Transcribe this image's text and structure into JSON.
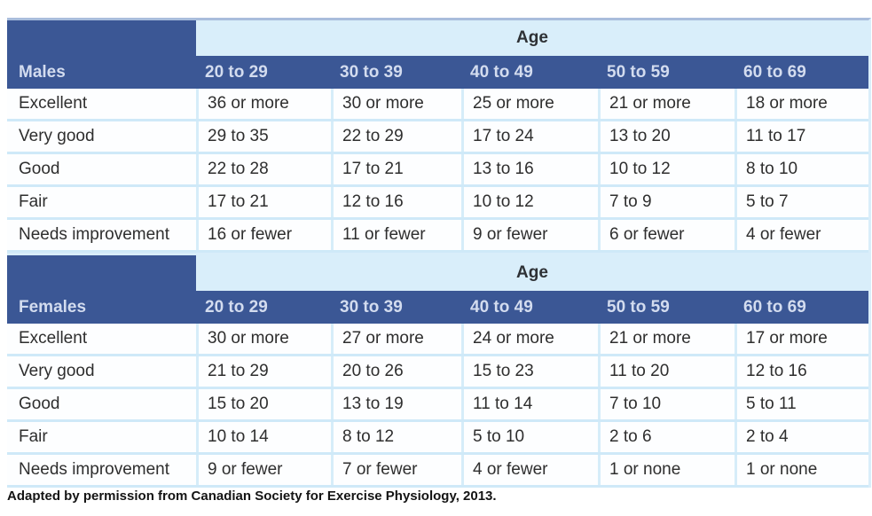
{
  "page": {
    "age_band_label": "Age",
    "footer_note": "Adapted by permission from Canadian Society for Exercise Physiology, 2013."
  },
  "colors": {
    "header_bg": "#3b5795",
    "age_band_bg": "#d9eefa",
    "row_divider": "#cfe9f8",
    "top_border": "#a9bddc",
    "header_text": "#d3dcef",
    "body_text": "#2e2e2e"
  },
  "sections": [
    {
      "group_label": "Males",
      "age_columns": [
        "20 to 29",
        "30 to 39",
        "40 to 49",
        "50 to 59",
        "60 to 69"
      ],
      "rows": [
        {
          "category": "Excellent",
          "values": [
            "36 or more",
            "30 or more",
            "25 or more",
            "21 or more",
            "18 or more"
          ]
        },
        {
          "category": "Very good",
          "values": [
            "29 to 35",
            "22 to 29",
            "17 to 24",
            "13 to 20",
            "11 to 17"
          ]
        },
        {
          "category": "Good",
          "values": [
            "22 to 28",
            "17 to 21",
            "13 to 16",
            "10 to 12",
            "8 to 10"
          ]
        },
        {
          "category": "Fair",
          "values": [
            "17 to 21",
            "12 to 16",
            "10 to 12",
            "7 to 9",
            "5 to 7"
          ]
        },
        {
          "category": "Needs improvement",
          "values": [
            "16 or fewer",
            "11 or fewer",
            "9 or fewer",
            "6 or fewer",
            "4 or fewer"
          ]
        }
      ]
    },
    {
      "group_label": "Females",
      "age_columns": [
        "20 to 29",
        "30 to 39",
        "40 to 49",
        "50 to 59",
        "60 to 69"
      ],
      "rows": [
        {
          "category": "Excellent",
          "values": [
            "30 or more",
            "27 or more",
            "24 or more",
            "21 or more",
            "17 or more"
          ]
        },
        {
          "category": "Very good",
          "values": [
            "21 to 29",
            "20 to 26",
            "15 to 23",
            "11 to 20",
            "12 to 16"
          ]
        },
        {
          "category": "Good",
          "values": [
            "15 to 20",
            "13 to 19",
            "11 to 14",
            "7 to 10",
            "5 to 11"
          ]
        },
        {
          "category": "Fair",
          "values": [
            "10 to 14",
            "8 to 12",
            "5 to 10",
            "2 to 6",
            "2 to 4"
          ]
        },
        {
          "category": "Needs improvement",
          "values": [
            "9 or fewer",
            "7 or fewer",
            "4 or fewer",
            "1 or none",
            "1 or none"
          ]
        }
      ]
    }
  ]
}
